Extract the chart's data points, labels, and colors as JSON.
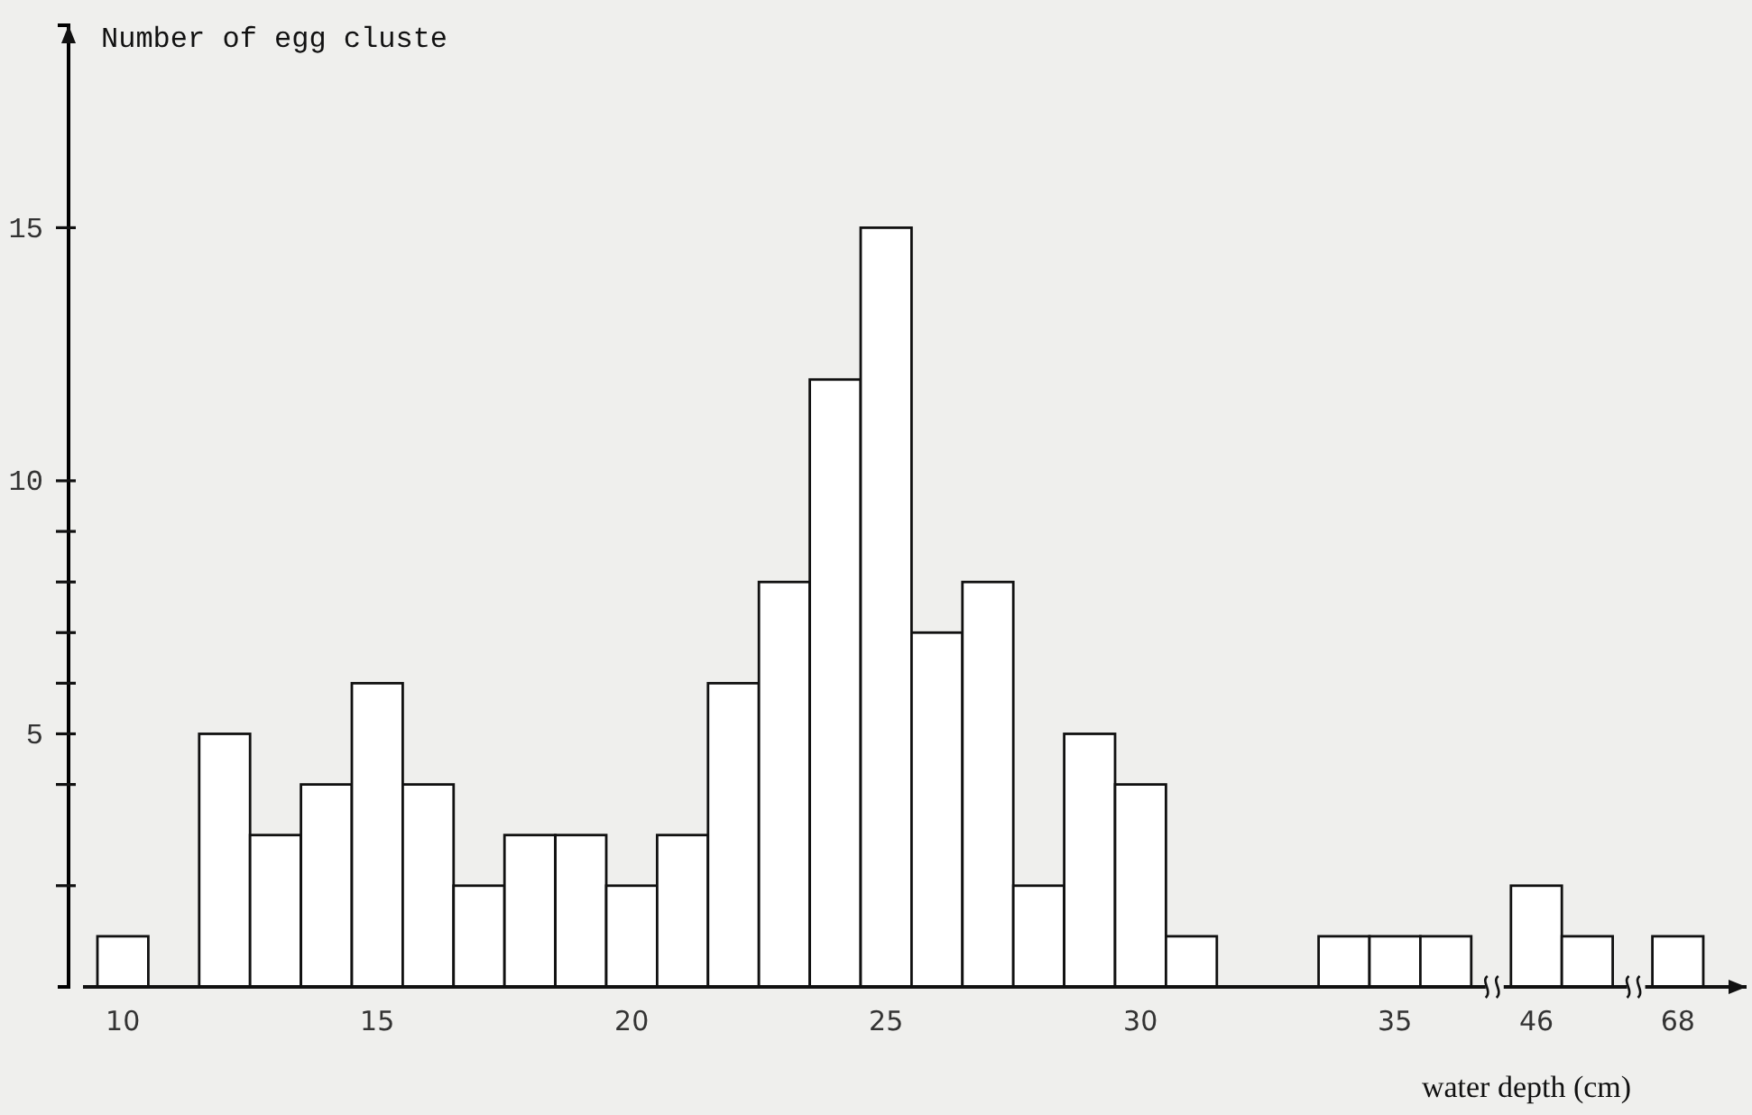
{
  "chart_data": {
    "type": "bar",
    "ylabel": "Number of egg cluste",
    "xlabel": "water depth (cm)",
    "categories": [
      "10",
      null,
      null,
      null,
      null,
      "15",
      null,
      null,
      null,
      null,
      "20",
      null,
      null,
      null,
      null,
      "25",
      null,
      null,
      null,
      null,
      "30",
      null,
      null,
      null,
      null,
      "35",
      null,
      "46",
      null,
      "68"
    ],
    "values": [
      1,
      null,
      5,
      3,
      4,
      6,
      4,
      2,
      3,
      3,
      2,
      3,
      6,
      8,
      12,
      15,
      7,
      8,
      2,
      5,
      4,
      1,
      null,
      null,
      1,
      1,
      1,
      2,
      1,
      1
    ],
    "color": "#ffffff",
    "ylim": [
      0,
      19
    ],
    "yticks": [
      {
        "value": 2,
        "label": null
      },
      {
        "value": 4,
        "label": null
      },
      5,
      {
        "value": 6,
        "label": null
      },
      {
        "value": 7,
        "label": null
      },
      {
        "value": 8,
        "label": null
      },
      {
        "value": 9,
        "label": null
      },
      10,
      15
    ],
    "grid": false
  }
}
